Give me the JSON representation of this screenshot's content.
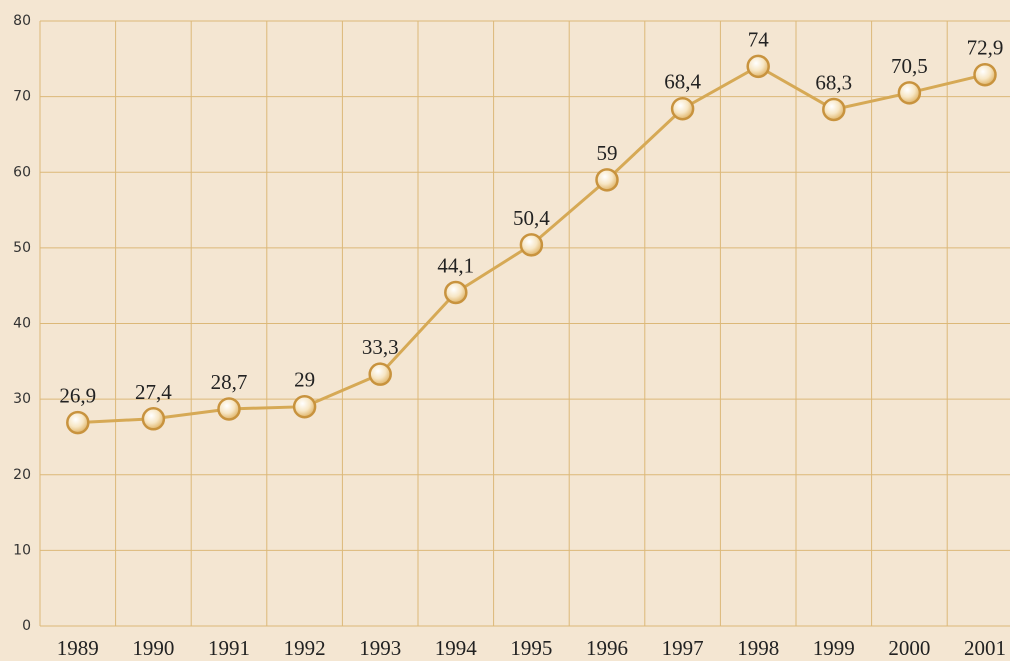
{
  "chart_data": {
    "type": "line",
    "categories": [
      "1989",
      "1990",
      "1991",
      "1992",
      "1993",
      "1994",
      "1995",
      "1996",
      "1997",
      "1998",
      "1999",
      "2000",
      "2001"
    ],
    "values": [
      26.9,
      27.4,
      28.7,
      29,
      33.3,
      44.1,
      50.4,
      59,
      68.4,
      74,
      68.3,
      70.5,
      72.9
    ],
    "value_labels": [
      "26,9",
      "27,4",
      "28,7",
      "29",
      "33,3",
      "44,1",
      "50,4",
      "59",
      "68,4",
      "74",
      "68,3",
      "70,5",
      "72,9"
    ],
    "color": "#d6a955",
    "ylim": [
      0,
      80
    ],
    "yticks": [
      0,
      10,
      20,
      30,
      40,
      50,
      60,
      70,
      80
    ],
    "grid": true
  }
}
